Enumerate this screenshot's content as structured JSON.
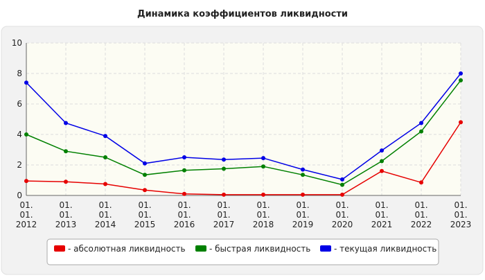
{
  "chart_data": {
    "type": "line",
    "title": "Динамика коэффициентов ликвидности",
    "categories": [
      "01. 01. 2012",
      "01. 01. 2013",
      "01. 01. 2014",
      "01. 01. 2015",
      "01. 01. 2016",
      "01. 01. 2017",
      "01. 01. 2018",
      "01. 01. 2019",
      "01. 01. 2020",
      "01. 01. 2021",
      "01. 01. 2022",
      "01. 01. 2023"
    ],
    "series": [
      {
        "name": "- абсолютная ликвидность",
        "color": "#e60000",
        "values": [
          0.95,
          0.9,
          0.75,
          0.35,
          0.1,
          0.05,
          0.05,
          0.05,
          0.05,
          1.6,
          0.85,
          4.8
        ]
      },
      {
        "name": "- быстрая ликвидность",
        "color": "#008000",
        "values": [
          4.0,
          2.9,
          2.5,
          1.35,
          1.65,
          1.75,
          1.9,
          1.35,
          0.7,
          2.25,
          4.2,
          7.55
        ]
      },
      {
        "name": "- текущая ликвидность",
        "color": "#0000e6",
        "values": [
          7.4,
          4.75,
          3.9,
          2.1,
          2.5,
          2.35,
          2.45,
          1.7,
          1.05,
          2.95,
          4.75,
          8.0
        ]
      }
    ],
    "ylim": [
      0,
      10
    ],
    "yticks": [
      0,
      2,
      4,
      6,
      8,
      10
    ],
    "grid": true
  }
}
